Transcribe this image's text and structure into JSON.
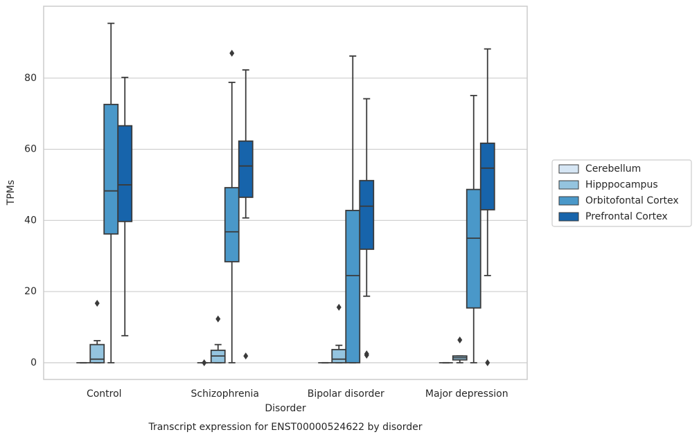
{
  "chart_data": {
    "type": "box",
    "title": "Transcript expression for ENST00000524622 by disorder",
    "x_label": "Disorder",
    "y_label": "TPMs",
    "categories": [
      "Control",
      "Schizophrenia",
      "Bipolar disorder",
      "Major depression"
    ],
    "ylim": [
      -4.7,
      100.2
    ],
    "yticks": [
      0,
      20,
      40,
      60,
      80
    ],
    "grid": true,
    "legend": "right",
    "series": [
      {
        "name": "Cerebellum",
        "color": "#d6e6f4",
        "boxes": [
          {
            "min": 0,
            "q1": 0,
            "median": 0,
            "q3": 0,
            "max": 0,
            "outliers": []
          },
          {
            "min": 0,
            "q1": 0,
            "median": 0,
            "q3": 0,
            "max": 0,
            "outliers": [
              0
            ]
          },
          {
            "min": 0,
            "q1": 0,
            "median": 0,
            "q3": 0,
            "max": 0,
            "outliers": []
          },
          {
            "min": 0,
            "q1": 0,
            "median": 0,
            "q3": 0,
            "max": 0,
            "outliers": []
          }
        ]
      },
      {
        "name": "Hipppocampus",
        "color": "#94c4df",
        "boxes": [
          {
            "min": 0,
            "q1": 0,
            "median": 1,
            "q3": 5.1,
            "max": 6.2,
            "outliers": [
              16.7
            ]
          },
          {
            "min": 0,
            "q1": 0,
            "median": 1.9,
            "q3": 3.5,
            "max": 5.1,
            "outliers": [
              12.3
            ]
          },
          {
            "min": 0,
            "q1": 0,
            "median": 1,
            "q3": 3.7,
            "max": 4.9,
            "outliers": [
              15.6
            ]
          },
          {
            "min": 0,
            "q1": 0.8,
            "median": 1.4,
            "q3": 1.9,
            "max": 1.9,
            "outliers": [
              6.4
            ]
          }
        ]
      },
      {
        "name": "Orbitofontal Cortex",
        "color": "#4a98c9",
        "boxes": [
          {
            "min": 0,
            "q1": 36.2,
            "median": 48.3,
            "q3": 72.6,
            "max": 95.4,
            "outliers": []
          },
          {
            "min": 0,
            "q1": 28.4,
            "median": 36.8,
            "q3": 49.2,
            "max": 78.8,
            "outliers": [
              87.0
            ]
          },
          {
            "min": 0,
            "q1": 0,
            "median": 24.5,
            "q3": 42.8,
            "max": 86.2,
            "outliers": []
          },
          {
            "min": 0,
            "q1": 15.4,
            "median": 35.0,
            "q3": 48.7,
            "max": 75.1,
            "outliers": []
          }
        ]
      },
      {
        "name": "Prefrontal Cortex",
        "color": "#1764ab",
        "boxes": [
          {
            "min": 7.6,
            "q1": 39.7,
            "median": 50.0,
            "q3": 66.6,
            "max": 80.2,
            "outliers": []
          },
          {
            "min": 40.7,
            "q1": 46.5,
            "median": 55.3,
            "q3": 62.3,
            "max": 82.3,
            "outliers": [
              1.9
            ]
          },
          {
            "min": 18.7,
            "q1": 31.9,
            "median": 44.0,
            "q3": 51.2,
            "max": 74.2,
            "outliers": [
              2.5,
              2.1
            ]
          },
          {
            "min": 24.5,
            "q1": 43.0,
            "median": 54.7,
            "q3": 61.7,
            "max": 88.2,
            "outliers": [
              0
            ]
          }
        ]
      }
    ]
  }
}
